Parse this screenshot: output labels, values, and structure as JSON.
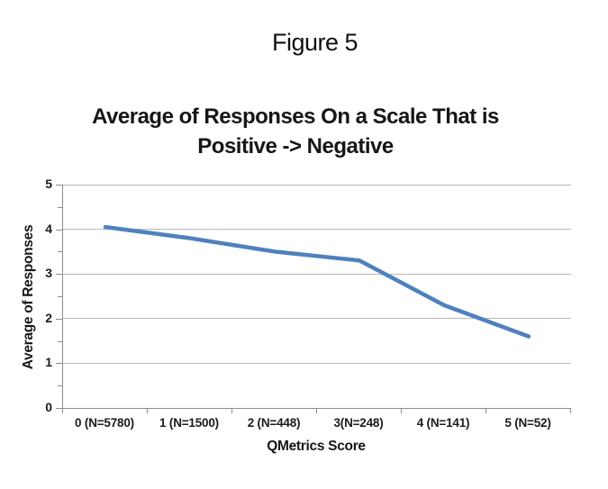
{
  "figure_label": "Figure 5",
  "chart": {
    "title_line1": "Average of Responses On a Scale That is",
    "title_line2": "Positive -> Negative",
    "ylabel": "Average of Responses",
    "xlabel": "QMetrics Score"
  },
  "chart_data": {
    "type": "line",
    "title": "Average of Responses On a Scale That is Positive -> Negative",
    "categories": [
      "0 (N=5780)",
      "1 (N=1500)",
      "2 (N=448)",
      "3(N=248)",
      "4 (N=141)",
      "5 (N=52)"
    ],
    "series": [
      {
        "name": "Average of Responses",
        "values": [
          4.05,
          3.8,
          3.5,
          3.3,
          2.3,
          1.6
        ]
      }
    ],
    "xlabel": "QMetrics Score",
    "ylabel": "Average of Responses",
    "ylim": [
      0,
      5
    ],
    "yticks": [
      0,
      1,
      2,
      3,
      4,
      5
    ],
    "minor_ytick_step": 0.5,
    "grid": true,
    "legend_position": "none"
  },
  "colors": {
    "line": "#4f81bd",
    "gridline": "#b8b8b8",
    "axis": "#8c8c8c",
    "text": "#1c1c1c"
  }
}
